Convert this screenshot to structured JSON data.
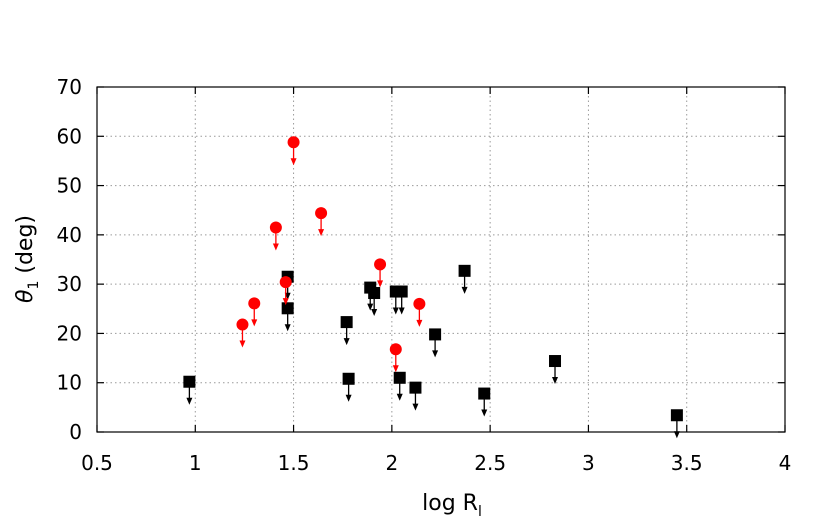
{
  "chart_data": {
    "type": "scatter",
    "title": "",
    "xlabel": {
      "main": "log R",
      "sub": "l"
    },
    "ylabel": {
      "main": "θ",
      "sub": "1",
      "rest": " (deg)"
    },
    "xlim": [
      0.5,
      4
    ],
    "ylim": [
      0,
      70
    ],
    "xticks": [
      "0.5",
      "1",
      "1.5",
      "2",
      "2.5",
      "3",
      "3.5",
      "4"
    ],
    "yticks": [
      "0",
      "10",
      "20",
      "30",
      "40",
      "50",
      "60",
      "70"
    ],
    "grid": true,
    "legend": "none",
    "series": [
      {
        "marker": "square",
        "color": "#000000",
        "upper_limits": true,
        "points": [
          {
            "x": 0.97,
            "y": 10.2
          },
          {
            "x": 1.47,
            "y": 31.5
          },
          {
            "x": 1.47,
            "y": 25.1
          },
          {
            "x": 1.77,
            "y": 22.3
          },
          {
            "x": 1.78,
            "y": 10.8
          },
          {
            "x": 1.89,
            "y": 29.3
          },
          {
            "x": 1.91,
            "y": 28.2
          },
          {
            "x": 2.02,
            "y": 28.5
          },
          {
            "x": 2.05,
            "y": 28.5
          },
          {
            "x": 2.04,
            "y": 11.0
          },
          {
            "x": 2.12,
            "y": 9.0
          },
          {
            "x": 2.22,
            "y": 19.8
          },
          {
            "x": 2.37,
            "y": 32.7
          },
          {
            "x": 2.47,
            "y": 7.8
          },
          {
            "x": 2.83,
            "y": 14.4
          },
          {
            "x": 3.45,
            "y": 3.4
          }
        ]
      },
      {
        "marker": "circle",
        "color": "#ff0000",
        "upper_limits": true,
        "points": [
          {
            "x": 1.24,
            "y": 21.8
          },
          {
            "x": 1.3,
            "y": 26.1
          },
          {
            "x": 1.41,
            "y": 41.5
          },
          {
            "x": 1.46,
            "y": 30.4
          },
          {
            "x": 1.5,
            "y": 58.8
          },
          {
            "x": 1.64,
            "y": 44.4
          },
          {
            "x": 1.94,
            "y": 34.0
          },
          {
            "x": 2.02,
            "y": 16.8
          },
          {
            "x": 2.14,
            "y": 26.0
          }
        ]
      }
    ]
  }
}
